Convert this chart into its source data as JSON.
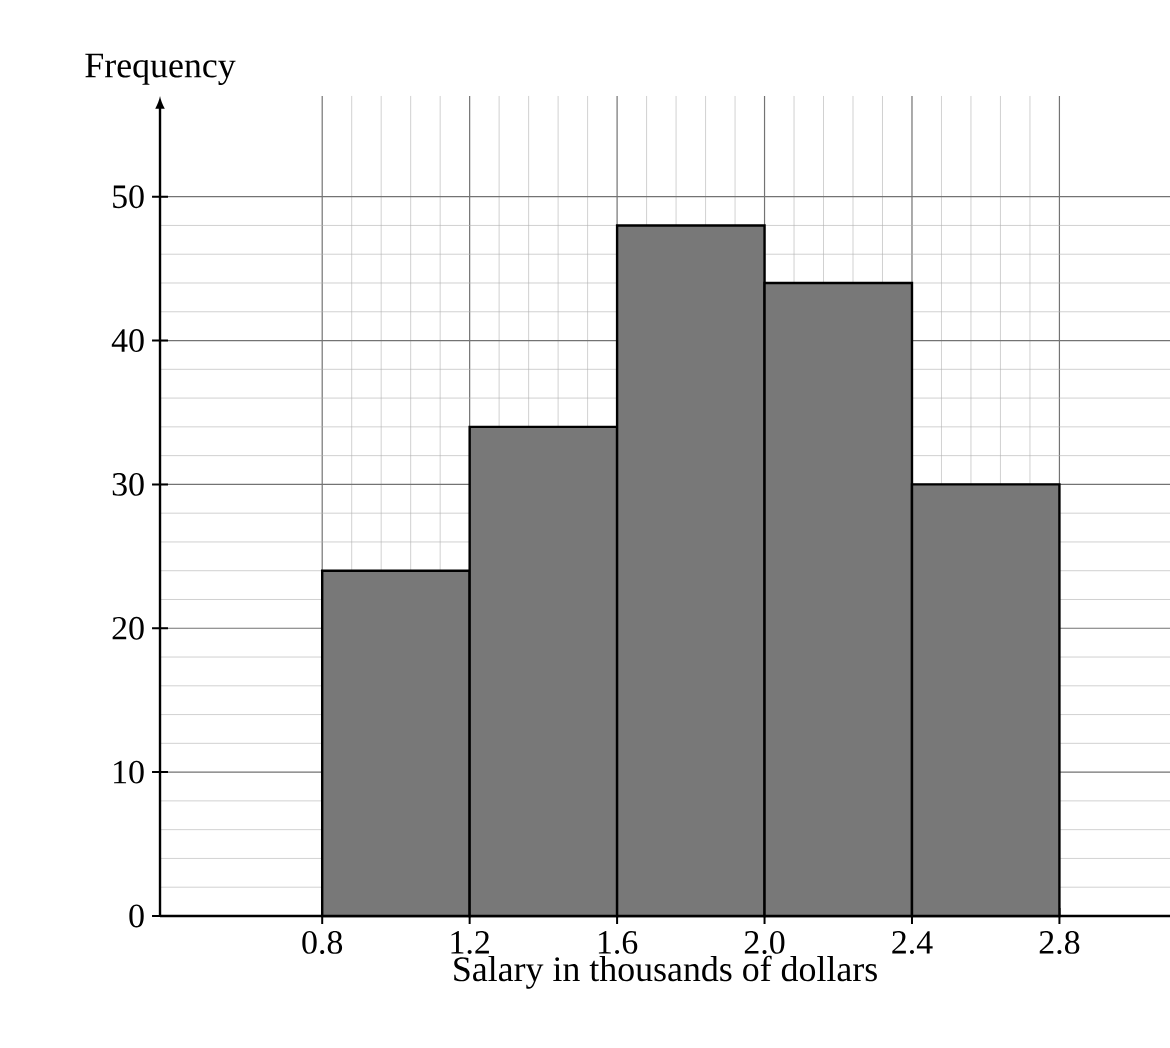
{
  "chart_data": {
    "type": "histogram",
    "xlabel": "Salary in thousands of dollars",
    "ylabel": "Frequency",
    "bins": [
      0.8,
      1.2,
      1.6,
      2.0,
      2.4,
      2.8
    ],
    "values": [
      24,
      34,
      48,
      44,
      30
    ],
    "color": "#787878",
    "xlim": [
      0.36,
      3.1
    ],
    "ylim": [
      0,
      57
    ],
    "xticks": [
      0.8,
      1.2,
      1.6,
      {
        "value": 2.0,
        "label": "2.0"
      },
      2.4,
      2.8
    ],
    "yticks": [
      0,
      10,
      20,
      30,
      40,
      50
    ],
    "grid": true
  }
}
